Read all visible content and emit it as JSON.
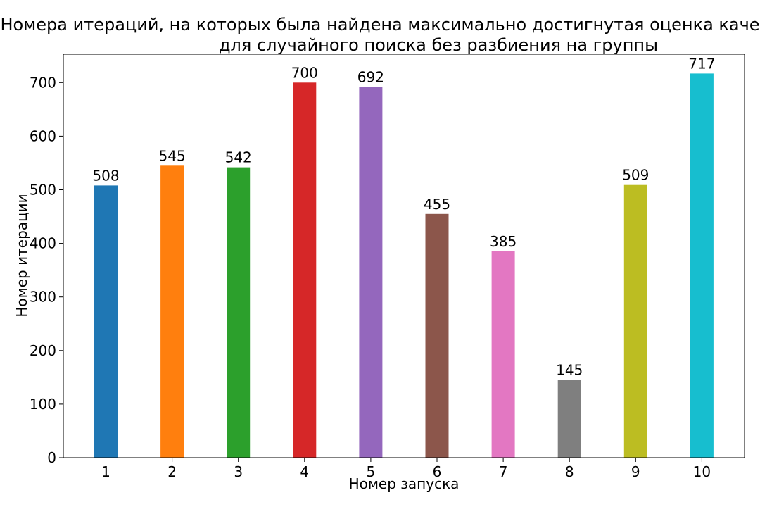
{
  "chart_data": {
    "type": "bar",
    "title": [
      "Номера итераций, на которых была найдена максимально достигнутая оценка каче",
      "для случайного поиска без разбиения на группы"
    ],
    "xlabel": "Номер запуска",
    "ylabel": "Номер итерации",
    "categories": [
      "1",
      "2",
      "3",
      "4",
      "5",
      "6",
      "7",
      "8",
      "9",
      "10"
    ],
    "values": [
      508,
      545,
      542,
      700,
      692,
      455,
      385,
      145,
      509,
      717
    ],
    "data_labels": [
      "508",
      "545",
      "542",
      "700",
      "692",
      "455",
      "385",
      "145",
      "509",
      "717"
    ],
    "colors": [
      "#1f77b4",
      "#ff7f0e",
      "#2ca02c",
      "#d62728",
      "#9467bd",
      "#8c564b",
      "#e377c2",
      "#7f7f7f",
      "#bcbd22",
      "#17becf"
    ],
    "ylim": [
      0,
      753
    ],
    "yticks": [
      0,
      100,
      200,
      300,
      400,
      500,
      600,
      700
    ],
    "ytick_labels": [
      "0",
      "100",
      "200",
      "300",
      "400",
      "500",
      "600",
      "700"
    ],
    "grid": false,
    "legend": "none"
  }
}
